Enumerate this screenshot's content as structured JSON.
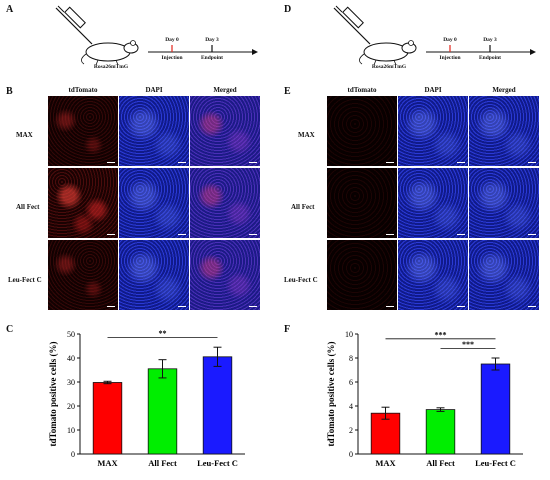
{
  "panels": {
    "A": "A",
    "B": "B",
    "C": "C",
    "D": "D",
    "E": "E",
    "F": "F"
  },
  "schema": {
    "mouse_label": "Rosa26mTmG",
    "day0": "Day 0",
    "day3": "Day 3",
    "injection": "Injection",
    "endpoint": "Endpoint"
  },
  "columns": [
    "tdTomato",
    "DAPI",
    "Merged"
  ],
  "rows": [
    "MAX",
    "All Fect",
    "Leu-Fect C"
  ],
  "colors": {
    "max": "#ff0000",
    "allfect": "#00ee00",
    "leufect": "#1a1aff"
  },
  "chart_data": [
    {
      "type": "bar",
      "categories": [
        "MAX",
        "All Fect",
        "Leu-Fect C"
      ],
      "values": [
        29.8,
        35.5,
        40.5
      ],
      "errors": [
        0.5,
        3.8,
        4.0
      ],
      "ylabel": "tdTomato positive cells (%)",
      "ylim": [
        0,
        50
      ],
      "yticks": [
        "0",
        "10",
        "20",
        "30",
        "40",
        "50"
      ],
      "significance": [
        {
          "from": 0,
          "to": 2,
          "label": "**"
        }
      ]
    },
    {
      "type": "bar",
      "categories": [
        "MAX",
        "All Fect",
        "Leu-Fect C"
      ],
      "values": [
        3.4,
        3.7,
        7.5
      ],
      "errors": [
        0.5,
        0.15,
        0.5
      ],
      "ylabel": "tdTomato positive cells (%)",
      "ylim": [
        0,
        10
      ],
      "yticks": [
        "0",
        "2",
        "4",
        "6",
        "8",
        "10"
      ],
      "significance": [
        {
          "from": 0,
          "to": 2,
          "label": "***"
        },
        {
          "from": 1,
          "to": 2,
          "label": "***"
        }
      ]
    }
  ]
}
